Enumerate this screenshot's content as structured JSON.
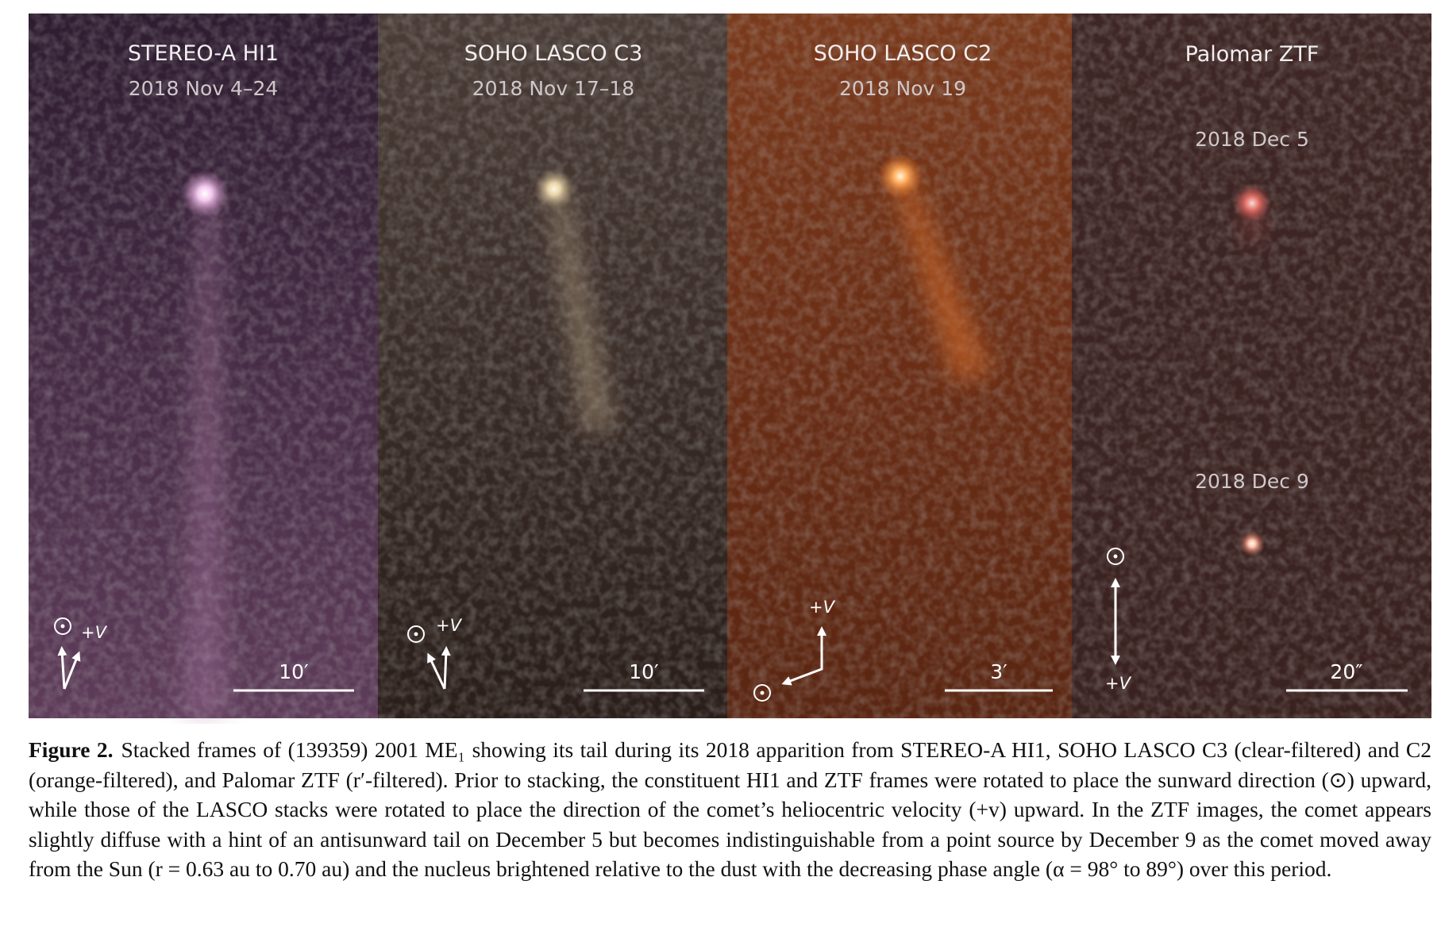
{
  "figure": {
    "panels": [
      {
        "title": "STEREO-A HI1",
        "dates": [
          "2018 Nov 4–24"
        ],
        "scale": "10′",
        "velocity_label": "+V"
      },
      {
        "title": "SOHO LASCO C3",
        "dates": [
          "2018 Nov 17–18"
        ],
        "scale": "10′",
        "velocity_label": "+V"
      },
      {
        "title": "SOHO LASCO C2",
        "dates": [
          "2018 Nov 19"
        ],
        "scale": "3′",
        "velocity_label": "+V"
      },
      {
        "title": "Palomar ZTF",
        "dates": [
          "2018 Dec 5",
          "2018 Dec 9"
        ],
        "scale": "20″",
        "velocity_label": "+V"
      }
    ],
    "caption": {
      "label": "Figure 2.",
      "text": "Stacked frames of (139359) 2001 ME₁ showing its tail during its 2018 apparition from STEREO-A HI1, SOHO LASCO C3 (clear-filtered) and C2 (orange-filtered), and Palomar ZTF (r′-filtered). Prior to stacking, the constituent HI1 and ZTF frames were rotated to place the sunward direction (⊙) upward, while those of the LASCO stacks were rotated to place the direction of the comet’s heliocentric velocity (+v) upward. In the ZTF images, the comet appears slightly diffuse with a hint of an antisunward tail on December 5 but becomes indistinguishable from a point source by December 9 as the comet moved away from the Sun (r = 0.63 au to 0.70 au) and the nucleus brightened relative to the dust with the decreasing phase angle (α = 98° to 89°) over this period."
    }
  }
}
